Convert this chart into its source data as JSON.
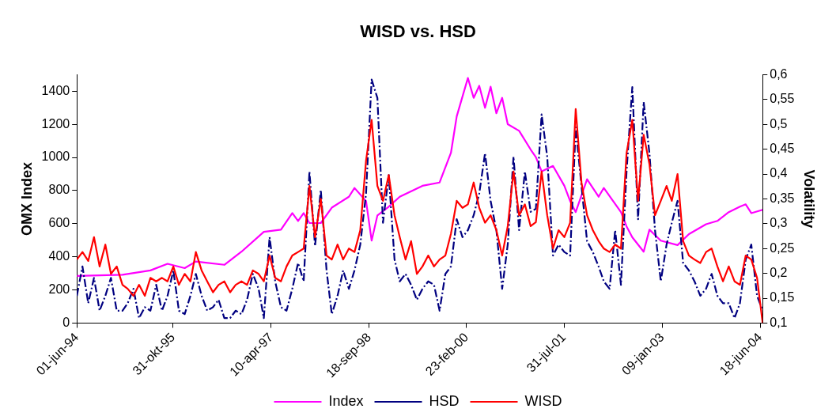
{
  "chart_data": {
    "type": "line",
    "title": "WISD vs. HSD",
    "ylabel": "OMX Index",
    "y2label": "Volatility",
    "x": [
      "1994-06",
      "1994-07",
      "1994-08",
      "1994-09",
      "1994-10",
      "1994-11",
      "1994-12",
      "1995-01",
      "1995-02",
      "1995-03",
      "1995-04",
      "1995-05",
      "1995-06",
      "1995-07",
      "1995-08",
      "1995-09",
      "1995-10",
      "1995-11",
      "1995-12",
      "1996-01",
      "1996-02",
      "1996-03",
      "1996-04",
      "1996-05",
      "1996-06",
      "1996-07",
      "1996-08",
      "1996-09",
      "1996-10",
      "1996-11",
      "1996-12",
      "1997-01",
      "1997-02",
      "1997-03",
      "1997-04",
      "1997-05",
      "1997-06",
      "1997-07",
      "1997-08",
      "1997-09",
      "1997-10",
      "1997-11",
      "1997-12",
      "1998-01",
      "1998-02",
      "1998-03",
      "1998-04",
      "1998-05",
      "1998-06",
      "1998-07",
      "1998-08",
      "1998-09",
      "1998-10",
      "1998-11",
      "1998-12",
      "1999-01",
      "1999-02",
      "1999-03",
      "1999-04",
      "1999-05",
      "1999-06",
      "1999-07",
      "1999-08",
      "1999-09",
      "1999-10",
      "1999-11",
      "1999-12",
      "2000-01",
      "2000-02",
      "2000-03",
      "2000-04",
      "2000-05",
      "2000-06",
      "2000-07",
      "2000-08",
      "2000-09",
      "2000-10",
      "2000-11",
      "2000-12",
      "2001-01",
      "2001-02",
      "2001-03",
      "2001-04",
      "2001-05",
      "2001-06",
      "2001-07",
      "2001-08",
      "2001-09",
      "2001-10",
      "2001-11",
      "2001-12",
      "2002-01",
      "2002-02",
      "2002-03",
      "2002-04",
      "2002-05",
      "2002-06",
      "2002-07",
      "2002-08",
      "2002-09",
      "2002-10",
      "2002-11",
      "2002-12",
      "2003-01",
      "2003-02",
      "2003-03",
      "2003-04",
      "2003-05",
      "2003-06",
      "2003-07",
      "2003-08",
      "2003-09",
      "2003-10",
      "2003-11",
      "2003-12",
      "2004-01",
      "2004-02",
      "2004-03",
      "2004-04",
      "2004-05",
      "2004-06",
      "2004-07"
    ],
    "series": [
      {
        "name": "Index",
        "color": "#ff00ff",
        "line_style": "solid",
        "x": [
          "1994-06",
          "1995-02",
          "1995-07",
          "1995-10",
          "1996-01",
          "1996-03",
          "1996-08",
          "1996-11",
          "1997-03",
          "1997-06",
          "1997-08",
          "1997-09",
          "1997-10",
          "1997-11",
          "1998-01",
          "1998-03",
          "1998-06",
          "1998-07",
          "1998-09",
          "1998-10",
          "1998-11",
          "1999-01",
          "1999-03",
          "1999-07",
          "1999-10",
          "1999-12",
          "2000-01",
          "2000-03",
          "2000-04",
          "2000-05",
          "2000-06",
          "2000-07",
          "2000-08",
          "2000-09",
          "2000-10",
          "2000-12",
          "2001-02",
          "2001-03",
          "2001-04",
          "2001-06",
          "2001-08",
          "2001-09",
          "2001-10",
          "2001-12",
          "2002-02",
          "2002-03",
          "2002-06",
          "2002-07",
          "2002-08",
          "2002-10",
          "2002-11",
          "2003-01",
          "2003-04",
          "2003-06",
          "2003-09",
          "2003-11",
          "2004-01",
          "2004-03",
          "2004-04",
          "2004-05",
          "2004-07"
        ],
        "values": [
          285,
          292,
          318,
          358,
          332,
          372,
          352,
          431,
          551,
          564,
          664,
          617,
          664,
          604,
          604,
          697,
          763,
          816,
          737,
          498,
          650,
          703,
          763,
          829,
          849,
          1028,
          1248,
          1480,
          1360,
          1433,
          1300,
          1427,
          1267,
          1360,
          1201,
          1161,
          1048,
          1002,
          916,
          949,
          829,
          737,
          670,
          869,
          763,
          816,
          670,
          584,
          518,
          431,
          564,
          498,
          471,
          537,
          597,
          617,
          670,
          703,
          717,
          664,
          684
        ]
      },
      {
        "name": "HSD",
        "color": "#000080",
        "line_style": "dashed",
        "axis": "y2",
        "values": [
          0.155,
          0.214,
          0.14,
          0.191,
          0.125,
          0.155,
          0.191,
          0.125,
          0.125,
          0.14,
          0.169,
          0.11,
          0.132,
          0.125,
          0.177,
          0.125,
          0.155,
          0.206,
          0.125,
          0.118,
          0.155,
          0.199,
          0.155,
          0.125,
          0.132,
          0.147,
          0.11,
          0.11,
          0.125,
          0.118,
          0.147,
          0.199,
          0.169,
          0.11,
          0.273,
          0.184,
          0.132,
          0.125,
          0.169,
          0.221,
          0.184,
          0.405,
          0.255,
          0.368,
          0.206,
          0.118,
          0.155,
          0.206,
          0.169,
          0.206,
          0.258,
          0.361,
          0.59,
          0.553,
          0.302,
          0.398,
          0.228,
          0.184,
          0.199,
          0.177,
          0.147,
          0.169,
          0.184,
          0.177,
          0.125,
          0.199,
          0.214,
          0.309,
          0.273,
          0.287,
          0.317,
          0.361,
          0.442,
          0.346,
          0.287,
          0.169,
          0.258,
          0.435,
          0.287,
          0.405,
          0.324,
          0.33,
          0.52,
          0.435,
          0.236,
          0.258,
          0.243,
          0.236,
          0.494,
          0.376,
          0.265,
          0.243,
          0.214,
          0.184,
          0.169,
          0.287,
          0.177,
          0.405,
          0.575,
          0.309,
          0.545,
          0.442,
          0.287,
          0.184,
          0.258,
          0.302,
          0.346,
          0.221,
          0.206,
          0.184,
          0.155,
          0.169,
          0.199,
          0.155,
          0.14,
          0.14,
          0.11,
          0.14,
          0.228,
          0.258,
          0.155,
          0.125
        ]
      },
      {
        "name": "WISD",
        "color": "#ff0000",
        "line_style": "solid",
        "axis": "y2",
        "values": [
          0.228,
          0.243,
          0.225,
          0.273,
          0.214,
          0.258,
          0.199,
          0.214,
          0.177,
          0.169,
          0.155,
          0.177,
          0.155,
          0.191,
          0.184,
          0.191,
          0.184,
          0.214,
          0.177,
          0.199,
          0.184,
          0.243,
          0.206,
          0.184,
          0.162,
          0.177,
          0.184,
          0.162,
          0.177,
          0.184,
          0.177,
          0.206,
          0.199,
          0.184,
          0.236,
          0.191,
          0.184,
          0.214,
          0.236,
          0.243,
          0.25,
          0.376,
          0.273,
          0.35,
          0.236,
          0.228,
          0.258,
          0.228,
          0.25,
          0.243,
          0.287,
          0.427,
          0.509,
          0.376,
          0.346,
          0.398,
          0.317,
          0.273,
          0.228,
          0.265,
          0.199,
          0.214,
          0.236,
          0.214,
          0.228,
          0.236,
          0.28,
          0.346,
          0.332,
          0.339,
          0.383,
          0.332,
          0.302,
          0.317,
          0.287,
          0.236,
          0.295,
          0.405,
          0.317,
          0.339,
          0.295,
          0.303,
          0.405,
          0.317,
          0.25,
          0.287,
          0.273,
          0.302,
          0.531,
          0.383,
          0.317,
          0.287,
          0.265,
          0.25,
          0.243,
          0.258,
          0.25,
          0.442,
          0.509,
          0.346,
          0.479,
          0.42,
          0.317,
          0.346,
          0.376,
          0.346,
          0.4,
          0.265,
          0.236,
          0.228,
          0.221,
          0.243,
          0.25,
          0.214,
          0.184,
          0.214,
          0.184,
          0.177,
          0.236,
          0.228,
          0.191,
          0.1
        ]
      }
    ],
    "xlim": [
      "1994-06",
      "2004-07"
    ],
    "xticks": [
      {
        "value": "1994-06-01",
        "label": "01-jun-94"
      },
      {
        "value": "1995-10-31",
        "label": "31-okt-95"
      },
      {
        "value": "1997-04-10",
        "label": "10-apr-97"
      },
      {
        "value": "1998-09-18",
        "label": "18-sep-98"
      },
      {
        "value": "2000-02-23",
        "label": "23-feb-00"
      },
      {
        "value": "2001-07-31",
        "label": "31-jul-01"
      },
      {
        "value": "2003-01-09",
        "label": "09-jan-03"
      },
      {
        "value": "2004-06-18",
        "label": "18-jun-04"
      }
    ],
    "ylim": [
      0,
      1500
    ],
    "yticks": [
      0,
      200,
      400,
      600,
      800,
      1000,
      1200,
      1400
    ],
    "y2lim": [
      0.1,
      0.6
    ],
    "y2ticks": [
      {
        "value": 0.1,
        "label": "0,1"
      },
      {
        "value": 0.15,
        "label": "0,15"
      },
      {
        "value": 0.2,
        "label": "0,2"
      },
      {
        "value": 0.25,
        "label": "0,25"
      },
      {
        "value": 0.3,
        "label": "0,3"
      },
      {
        "value": 0.35,
        "label": "0,35"
      },
      {
        "value": 0.4,
        "label": "0,4"
      },
      {
        "value": 0.45,
        "label": "0,45"
      },
      {
        "value": 0.5,
        "label": "0,5"
      },
      {
        "value": 0.55,
        "label": "0,55"
      },
      {
        "value": 0.6,
        "label": "0,6"
      }
    ],
    "grid": false,
    "legend": "bottom",
    "marker": "none"
  }
}
